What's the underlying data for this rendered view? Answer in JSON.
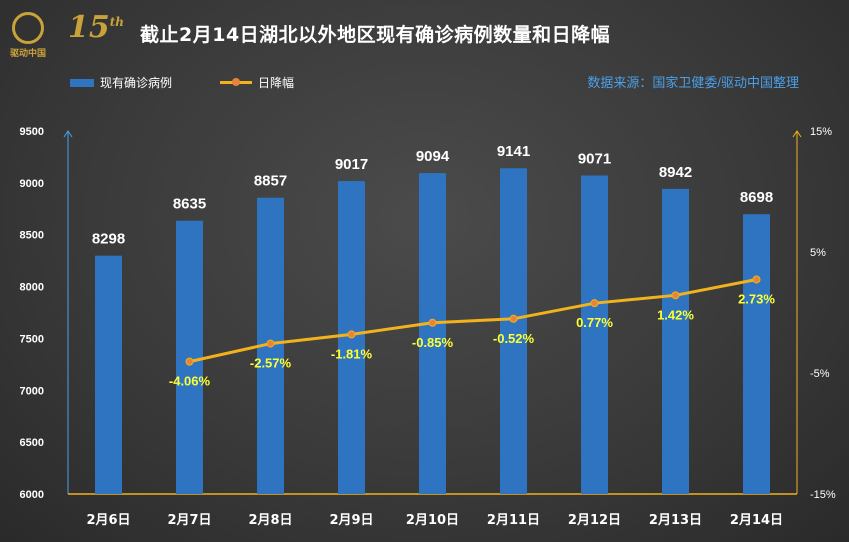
{
  "logo": {
    "number": "15",
    "suffix": "th",
    "text": "驱动中国"
  },
  "title": "截止2月14日湖北以外地区现有确诊病例数量和日降幅",
  "source": "数据来源：国家卫健委/驱动中国整理",
  "colors": {
    "bar": "#2e74c0",
    "line": "#f2b21b",
    "marker": "#e8843a",
    "label": "#ffff33",
    "axis_y2": "#f2b21b",
    "axis_y1": "#4aa0e8"
  },
  "chart_data": {
    "type": "bar",
    "title": "截止2月14日湖北以外地区现有确诊病例数量和日降幅",
    "categories": [
      "2月6日",
      "2月7日",
      "2月8日",
      "2月9日",
      "2月10日",
      "2月11日",
      "2月12日",
      "2月13日",
      "2月14日"
    ],
    "series": [
      {
        "name": "现有确诊病例",
        "type": "bar",
        "axis": "left",
        "values": [
          8298,
          8635,
          8857,
          9017,
          9094,
          9141,
          9071,
          8942,
          8698
        ],
        "labels": [
          "8298",
          "8635",
          "8857",
          "9017",
          "9094",
          "9141",
          "9071",
          "8942",
          "8698"
        ]
      },
      {
        "name": "日降幅",
        "type": "line",
        "axis": "right",
        "values": [
          null,
          -4.06,
          -2.57,
          -1.81,
          -0.85,
          -0.52,
          0.77,
          1.42,
          2.73
        ],
        "labels": [
          "",
          "-4.06%",
          "-2.57%",
          "-1.81%",
          "-0.85%",
          "-0.52%",
          "0.77%",
          "1.42%",
          "2.73%"
        ]
      }
    ],
    "y_left": {
      "min": 6000,
      "max": 9500,
      "ticks": [
        6000,
        6500,
        7000,
        7500,
        8000,
        8500,
        9000,
        9500
      ]
    },
    "y_right": {
      "min": -15,
      "max": 15,
      "ticks": [
        -15,
        -5,
        5,
        15
      ],
      "tick_labels": [
        "-15%",
        "-5%",
        "5%",
        "15%"
      ]
    },
    "grid": false,
    "legend_position": "top-left"
  }
}
